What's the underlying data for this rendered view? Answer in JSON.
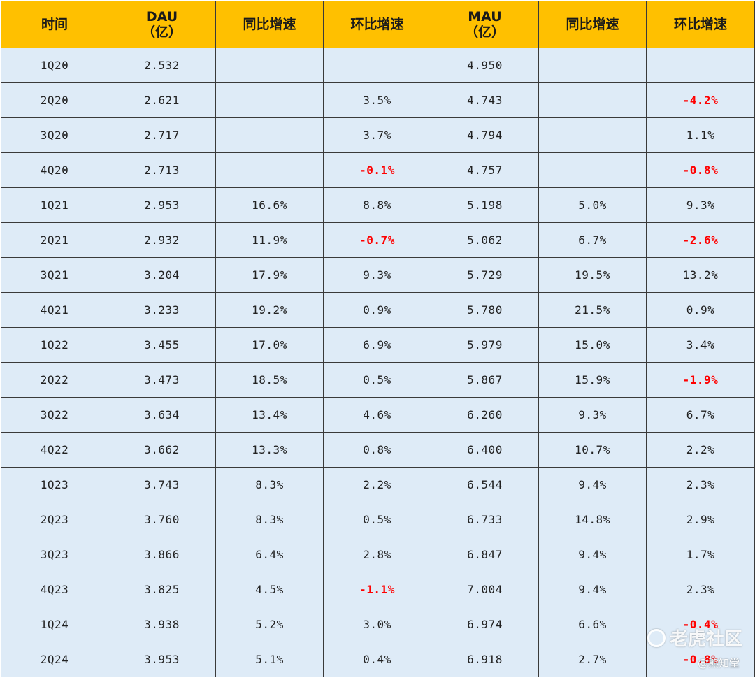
{
  "table": {
    "headers": [
      {
        "line1": "时间",
        "line2": ""
      },
      {
        "line1": "DAU",
        "line2": "（亿）"
      },
      {
        "line1": "同比增速",
        "line2": ""
      },
      {
        "line1": "环比增速",
        "line2": ""
      },
      {
        "line1": "MAU",
        "line2": "（亿）"
      },
      {
        "line1": "同比增速",
        "line2": ""
      },
      {
        "line1": "环比增速",
        "line2": ""
      }
    ],
    "rows": [
      [
        "1Q20",
        "2.532",
        "",
        "",
        "4.950",
        "",
        ""
      ],
      [
        "2Q20",
        "2.621",
        "",
        "3.5%",
        "4.743",
        "",
        "-4.2%"
      ],
      [
        "3Q20",
        "2.717",
        "",
        "3.7%",
        "4.794",
        "",
        "1.1%"
      ],
      [
        "4Q20",
        "2.713",
        "",
        "-0.1%",
        "4.757",
        "",
        "-0.8%"
      ],
      [
        "1Q21",
        "2.953",
        "16.6%",
        "8.8%",
        "5.198",
        "5.0%",
        "9.3%"
      ],
      [
        "2Q21",
        "2.932",
        "11.9%",
        "-0.7%",
        "5.062",
        "6.7%",
        "-2.6%"
      ],
      [
        "3Q21",
        "3.204",
        "17.9%",
        "9.3%",
        "5.729",
        "19.5%",
        "13.2%"
      ],
      [
        "4Q21",
        "3.233",
        "19.2%",
        "0.9%",
        "5.780",
        "21.5%",
        "0.9%"
      ],
      [
        "1Q22",
        "3.455",
        "17.0%",
        "6.9%",
        "5.979",
        "15.0%",
        "3.4%"
      ],
      [
        "2Q22",
        "3.473",
        "18.5%",
        "0.5%",
        "5.867",
        "15.9%",
        "-1.9%"
      ],
      [
        "3Q22",
        "3.634",
        "13.4%",
        "4.6%",
        "6.260",
        "9.3%",
        "6.7%"
      ],
      [
        "4Q22",
        "3.662",
        "13.3%",
        "0.8%",
        "6.400",
        "10.7%",
        "2.2%"
      ],
      [
        "1Q23",
        "3.743",
        "8.3%",
        "2.2%",
        "6.544",
        "9.4%",
        "2.3%"
      ],
      [
        "2Q23",
        "3.760",
        "8.3%",
        "0.5%",
        "6.733",
        "14.8%",
        "2.9%"
      ],
      [
        "3Q23",
        "3.866",
        "6.4%",
        "2.8%",
        "6.847",
        "9.4%",
        "1.7%"
      ],
      [
        "4Q23",
        "3.825",
        "4.5%",
        "-1.1%",
        "7.004",
        "9.4%",
        "2.3%"
      ],
      [
        "1Q24",
        "3.938",
        "5.2%",
        "3.0%",
        "6.974",
        "6.6%",
        "-0.4%"
      ],
      [
        "2Q24",
        "3.953",
        "5.1%",
        "0.4%",
        "6.918",
        "2.7%",
        "-0.8%"
      ]
    ]
  },
  "watermark": {
    "brand": "老虎社区",
    "author": "@熊知堂"
  },
  "colors": {
    "header_bg": "#ffc000",
    "cell_bg": "#deebf7",
    "negative": "#ff0000",
    "border": "#3a3a3a"
  }
}
